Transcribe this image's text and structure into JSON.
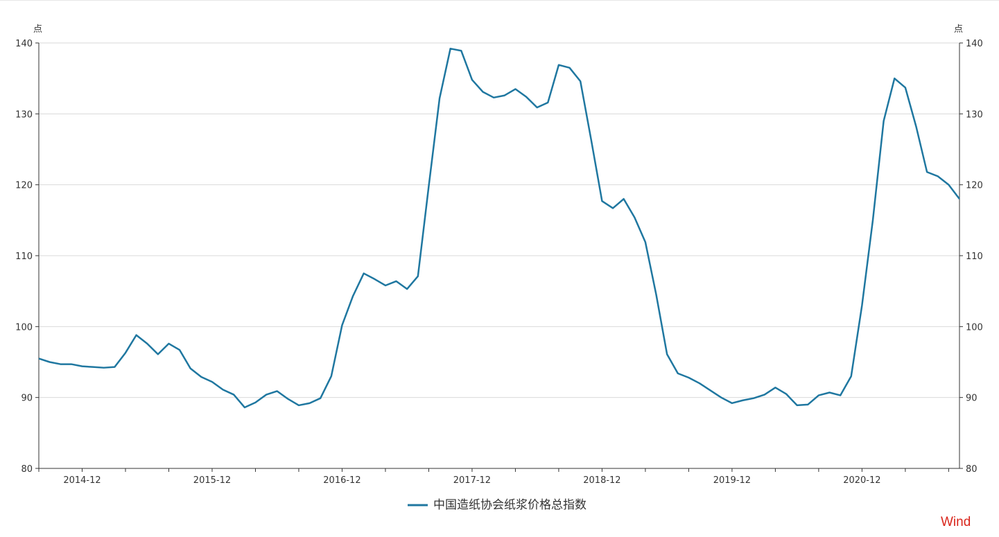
{
  "chart_data": {
    "type": "line",
    "y_unit_left": "点",
    "y_unit_right": "点",
    "ylim": [
      80,
      140
    ],
    "yticks": [
      80,
      90,
      100,
      110,
      120,
      130,
      140
    ],
    "ytick_labels": [
      "80",
      "90",
      "100",
      "110",
      "120",
      "130",
      "140"
    ],
    "x_start": "2014-08",
    "x_end": "2021-09",
    "xtick_labels": [
      {
        "month": "2014-12",
        "label": "2014-12"
      },
      {
        "month": "2015-12",
        "label": "2015-12"
      },
      {
        "month": "2016-12",
        "label": "2016-12"
      },
      {
        "month": "2017-12",
        "label": "2017-12"
      },
      {
        "month": "2018-12",
        "label": "2018-12"
      },
      {
        "month": "2019-12",
        "label": "2019-12"
      },
      {
        "month": "2020-12",
        "label": "2020-12"
      }
    ],
    "grid": true,
    "legend_position": "bottom-center",
    "series": [
      {
        "name": "中国造纸协会纸浆价格总指数",
        "color": "#1f77a0",
        "x": [
          "2014-08",
          "2014-09",
          "2014-10",
          "2014-11",
          "2014-12",
          "2015-01",
          "2015-02",
          "2015-03",
          "2015-04",
          "2015-05",
          "2015-06",
          "2015-07",
          "2015-08",
          "2015-09",
          "2015-10",
          "2015-11",
          "2015-12",
          "2016-01",
          "2016-02",
          "2016-03",
          "2016-04",
          "2016-05",
          "2016-06",
          "2016-07",
          "2016-08",
          "2016-09",
          "2016-10",
          "2016-11",
          "2016-12",
          "2017-01",
          "2017-02",
          "2017-03",
          "2017-04",
          "2017-05",
          "2017-06",
          "2017-07",
          "2017-08",
          "2017-09",
          "2017-10",
          "2017-11",
          "2017-12",
          "2018-01",
          "2018-02",
          "2018-03",
          "2018-04",
          "2018-05",
          "2018-06",
          "2018-07",
          "2018-08",
          "2018-09",
          "2018-10",
          "2018-11",
          "2018-12",
          "2019-01",
          "2019-02",
          "2019-03",
          "2019-04",
          "2019-05",
          "2019-06",
          "2019-07",
          "2019-08",
          "2019-09",
          "2019-10",
          "2019-11",
          "2019-12",
          "2020-01",
          "2020-02",
          "2020-03",
          "2020-04",
          "2020-05",
          "2020-06",
          "2020-07",
          "2020-08",
          "2020-09",
          "2020-10",
          "2020-11",
          "2020-12",
          "2021-01",
          "2021-02",
          "2021-03",
          "2021-04",
          "2021-05",
          "2021-06",
          "2021-07",
          "2021-08",
          "2021-09"
        ],
        "values": [
          95.5,
          95.0,
          94.7,
          94.7,
          94.4,
          94.3,
          94.2,
          94.3,
          96.3,
          98.8,
          97.6,
          96.1,
          97.6,
          96.7,
          94.1,
          92.9,
          92.2,
          91.1,
          90.4,
          88.6,
          89.3,
          90.4,
          90.9,
          89.8,
          88.9,
          89.2,
          89.9,
          93.0,
          100.2,
          104.3,
          107.5,
          106.7,
          105.8,
          106.4,
          105.3,
          107.1,
          119.8,
          132.2,
          139.2,
          138.9,
          134.8,
          133.1,
          132.3,
          132.6,
          133.5,
          132.4,
          130.9,
          131.6,
          136.9,
          136.5,
          134.6,
          126.3,
          117.7,
          116.7,
          118.0,
          115.4,
          111.9,
          104.5,
          96.1,
          93.4,
          92.8,
          92.0,
          91.0,
          90.0,
          89.2,
          89.6,
          89.9,
          90.4,
          91.4,
          90.5,
          88.9,
          89.0,
          90.3,
          90.7,
          90.3,
          93.0,
          103.0,
          115.0,
          129.0,
          135.0,
          133.7,
          128.2,
          121.8,
          121.2,
          120.0,
          118.0
        ]
      }
    ]
  },
  "watermark": "Wind"
}
